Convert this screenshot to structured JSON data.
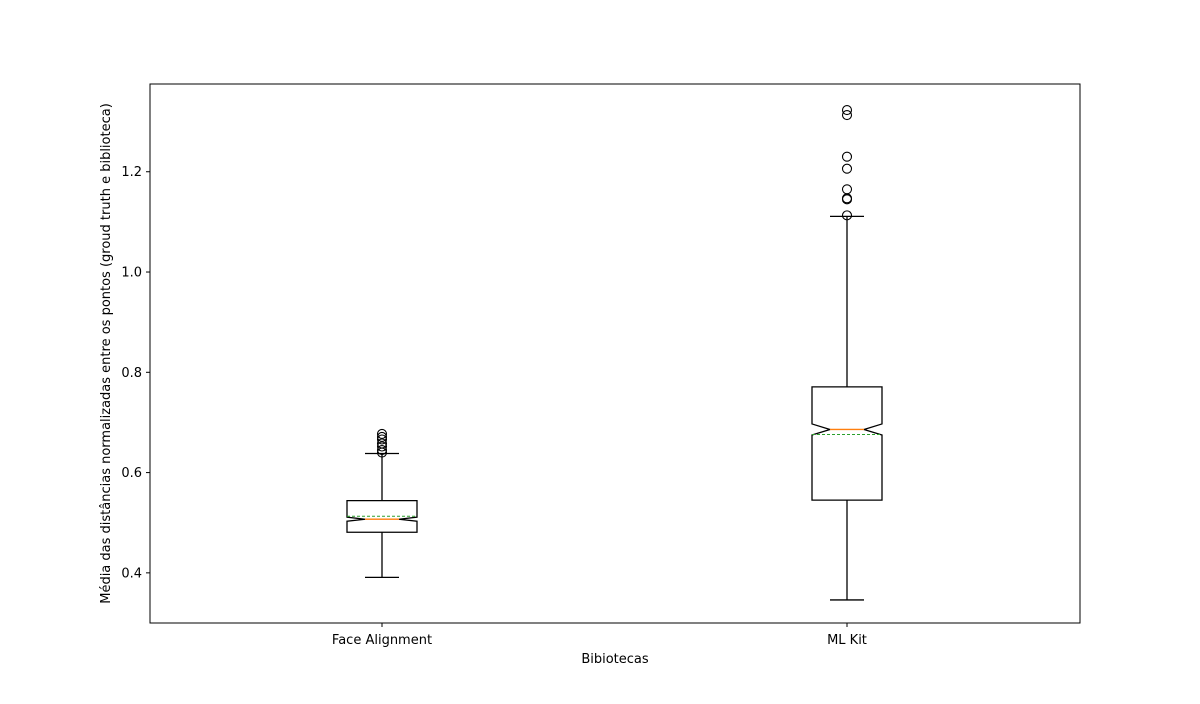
{
  "chart_data": {
    "type": "boxplot",
    "title": "",
    "xlabel": "Bibiotecas",
    "ylabel": "Média das distâncias normalizadas entre os pontos (groud truth e biblioteca)",
    "ylim": [
      0.3,
      1.375
    ],
    "yticks": [
      0.4,
      0.6,
      0.8,
      1.0,
      1.2
    ],
    "ytick_labels": [
      "0.4",
      "0.6",
      "0.8",
      "1.0",
      "1.2"
    ],
    "notched": true,
    "show_means": true,
    "mean_line_style": "dashed",
    "grid": false,
    "categories": [
      "Face Alignment",
      "ML Kit"
    ],
    "boxes": [
      {
        "label": "Face Alignment",
        "whisker_low": 0.391,
        "q1": 0.481,
        "median": 0.507,
        "mean": 0.513,
        "q3": 0.544,
        "whisker_high": 0.638,
        "notch_low": 0.503,
        "notch_high": 0.511,
        "outliers": [
          0.64,
          0.645,
          0.652,
          0.658,
          0.666,
          0.671,
          0.677
        ]
      },
      {
        "label": "ML Kit",
        "whisker_low": 0.346,
        "q1": 0.545,
        "median": 0.686,
        "mean": 0.676,
        "q3": 0.771,
        "whisker_high": 1.111,
        "notch_low": 0.675,
        "notch_high": 0.697,
        "outliers": [
          1.113,
          1.145,
          1.147,
          1.165,
          1.206,
          1.23,
          1.313,
          1.323
        ]
      }
    ],
    "colors": {
      "box": "#000000",
      "median": "#ff7f0e",
      "mean": "#2ca02c",
      "outlier": "#000000"
    }
  }
}
